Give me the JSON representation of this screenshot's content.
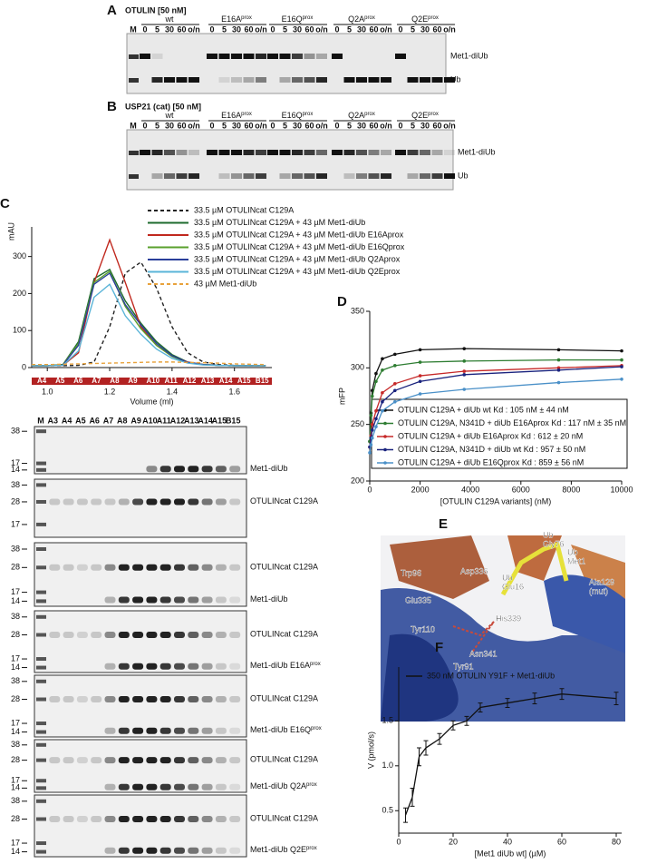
{
  "chart_data": [
    {
      "type": "line",
      "label": "C",
      "xlabel": "Volume (ml)",
      "ylabel": "mAU",
      "x": [
        0.95,
        1.0,
        1.05,
        1.1,
        1.15,
        1.2,
        1.25,
        1.3,
        1.35,
        1.4,
        1.45,
        1.5,
        1.55,
        1.6,
        1.65,
        1.7
      ],
      "xlim": [
        0.95,
        1.72
      ],
      "xticks": [
        {
          "value": 1,
          "label": "1.0"
        },
        1.2,
        1.4,
        1.6
      ],
      "ylim": [
        0,
        380
      ],
      "yticks": [
        0,
        100,
        200,
        300
      ],
      "fractions": [
        "A4",
        "A5",
        "A6",
        "A7",
        "A8",
        "A9",
        "A10",
        "A11",
        "A12",
        "A13",
        "A14",
        "A15",
        "B15"
      ],
      "series": [
        {
          "name": "33.5 µM OTULINcat C129A",
          "color": "#222222",
          "linestyle": "dashed",
          "values": [
            5,
            5,
            5,
            6,
            15,
            110,
            255,
            285,
            215,
            110,
            40,
            15,
            8,
            6,
            5,
            5
          ]
        },
        {
          "name": "33.5 µM OTULINcat C129A + 43 µM Met1-diUb",
          "color": "#1e6b2e",
          "linestyle": "solid",
          "values": [
            5,
            5,
            8,
            70,
            240,
            265,
            180,
            120,
            70,
            35,
            15,
            8,
            6,
            5,
            5,
            5
          ]
        },
        {
          "name": "33.5 µM OTULINcat C129A + 43 µM Met1-diUb E16Aprox",
          "color": "#c0281e",
          "linestyle": "solid",
          "values": [
            5,
            5,
            6,
            40,
            230,
            345,
            230,
            110,
            60,
            30,
            15,
            8,
            6,
            5,
            5,
            5
          ]
        },
        {
          "name": "33.5 µM OTULINcat C129A + 43 µM Met1-diUb E16Qprox",
          "color": "#5aa02c",
          "linestyle": "solid",
          "values": [
            5,
            5,
            8,
            65,
            230,
            260,
            165,
            105,
            60,
            30,
            13,
            8,
            6,
            5,
            5,
            5
          ]
        },
        {
          "name": "33.5 µM OTULINcat C129A + 43 µM Met1-diUb Q2Aprox",
          "color": "#2a3f9a",
          "linestyle": "solid",
          "values": [
            5,
            5,
            7,
            60,
            225,
            255,
            170,
            115,
            65,
            32,
            14,
            8,
            6,
            5,
            5,
            5
          ]
        },
        {
          "name": "33.5 µM OTULINcat C129A + 43 µM Met1-diUb Q2Eprox",
          "color": "#5ab4d8",
          "linestyle": "solid",
          "values": [
            5,
            5,
            6,
            45,
            190,
            225,
            140,
            90,
            50,
            25,
            12,
            7,
            6,
            5,
            5,
            5
          ]
        },
        {
          "name": "43 µM Met1-diUb",
          "color": "#e8a23c",
          "linestyle": "dashed",
          "values": [
            8,
            8,
            9,
            10,
            11,
            12,
            13,
            14,
            15,
            15,
            14,
            13,
            12,
            10,
            9,
            8
          ]
        }
      ]
    },
    {
      "type": "scatter",
      "label": "D",
      "xlabel": "[OTULIN C129A variants] (nM)",
      "ylabel": "mFP",
      "x": [
        0,
        50,
        100,
        250,
        500,
        1000,
        2000,
        3750,
        7500,
        10000
      ],
      "xlim": [
        0,
        10000
      ],
      "xticks": [
        0,
        2000,
        4000,
        6000,
        8000,
        10000
      ],
      "ylim": [
        200,
        350
      ],
      "yticks": [
        200,
        250,
        300,
        350
      ],
      "series": [
        {
          "name": "OTULIN C129A + diUb wt Kd : 105 nM ± 44 nM",
          "color": "#111111",
          "values": [
            235,
            260,
            280,
            295,
            308,
            312,
            316,
            317,
            316,
            315
          ]
        },
        {
          "name": "OTULIN C129A, N341D + diUb E16Aprox Kd : 117 nM ± 35 nM",
          "color": "#2e7d32",
          "values": [
            235,
            258,
            275,
            288,
            298,
            302,
            305,
            306,
            307,
            307
          ]
        },
        {
          "name": "OTULIN C129A + diUb E16Aprox Kd : 612 ± 20 nM",
          "color": "#c62828",
          "values": [
            230,
            240,
            250,
            262,
            278,
            286,
            293,
            297,
            300,
            302
          ]
        },
        {
          "name": "OTULIN C129A, N341D + diUb wt Kd : 957 ± 50 nM",
          "color": "#1a237e",
          "values": [
            230,
            238,
            245,
            255,
            270,
            280,
            288,
            294,
            298,
            301
          ]
        },
        {
          "name": "OTULIN C129A + diUb E16Qprox Kd : 859 ± 56 nM",
          "color": "#4a90c8",
          "values": [
            225,
            232,
            238,
            248,
            262,
            270,
            277,
            281,
            287,
            290
          ]
        }
      ]
    },
    {
      "type": "scatter",
      "label": "F",
      "xlabel": "[Met1 diUb wt] (µM)",
      "ylabel": "V (pmol/s)",
      "x": [
        2.5,
        5,
        7.5,
        10,
        15,
        20,
        25,
        30,
        40,
        50,
        60,
        80
      ],
      "xlim": [
        0,
        82
      ],
      "xticks": [
        0,
        20,
        40,
        60,
        80
      ],
      "ylim": [
        0.25,
        2.1
      ],
      "yticks": [
        0.5,
        {
          "value": 1,
          "label": "1.0"
        },
        1.5
      ],
      "series": [
        {
          "name": "350 nM OTULIN Y91F + Met1-diUb",
          "color": "#111111",
          "values": [
            0.45,
            0.65,
            1.1,
            1.2,
            1.3,
            1.45,
            1.5,
            1.65,
            1.7,
            1.75,
            1.8,
            1.75
          ],
          "errors": [
            0.08,
            0.1,
            0.1,
            0.08,
            0.06,
            0.05,
            0.05,
            0.05,
            0.05,
            0.06,
            0.06,
            0.07
          ]
        }
      ]
    }
  ],
  "gel_A": {
    "label": "A",
    "title": "OTULIN [50 nM]",
    "marker": "M",
    "groups": [
      {
        "text": "wt"
      },
      {
        "text": "E16A",
        "sup": "prox"
      },
      {
        "text": "E16Q",
        "sup": "prox"
      },
      {
        "text": "Q2A",
        "sup": "prox"
      },
      {
        "text": "Q2E",
        "sup": "prox"
      }
    ],
    "lanes": [
      "0",
      "5",
      "30",
      "60",
      "o/n"
    ],
    "bands": [
      "Met1-diUb",
      "Ub"
    ]
  },
  "gel_B": {
    "label": "B",
    "title": "USP21 (cat) [50 nM]",
    "marker": "M",
    "groups": [
      {
        "text": "wt"
      },
      {
        "text": "E16A",
        "sup": "prox"
      },
      {
        "text": "E16Q",
        "sup": "prox"
      },
      {
        "text": "Q2A",
        "sup": "prox"
      },
      {
        "text": "Q2E",
        "sup": "prox"
      }
    ],
    "lanes": [
      "0",
      "5",
      "30",
      "60",
      "o/n"
    ],
    "bands": [
      "Met1-diUb",
      "Ub"
    ]
  },
  "gel_C": {
    "lanes": [
      "M",
      "A3",
      "A4",
      "A5",
      "A6",
      "A7",
      "A8",
      "A9",
      "A10",
      "A11",
      "A12",
      "A13",
      "A14",
      "A15",
      "B15"
    ],
    "gels": [
      {
        "mw": [
          38,
          17,
          14
        ],
        "labels": [
          {
            "text": "Met1-diUb"
          }
        ]
      },
      {
        "mw": [
          38,
          28,
          17
        ],
        "labels": [
          {
            "text": "OTULINcat C129A"
          }
        ]
      },
      {
        "mw": [
          38,
          28,
          17,
          14
        ],
        "labels": [
          {
            "text": "OTULINcat C129A"
          },
          {
            "text": "Met1-diUb"
          }
        ]
      },
      {
        "mw": [
          38,
          28,
          17,
          14
        ],
        "labels": [
          {
            "text": "OTULINcat C129A"
          },
          {
            "text": "Met1-diUb E16A",
            "sup": "prox"
          }
        ]
      },
      {
        "mw": [
          38,
          28,
          17,
          14
        ],
        "labels": [
          {
            "text": "OTULINcat C129A"
          },
          {
            "text": "Met1-diUb E16Q",
            "sup": "prox"
          }
        ]
      },
      {
        "mw": [
          38,
          28,
          17,
          14
        ],
        "labels": [
          {
            "text": "OTULINcat C129A"
          },
          {
            "text": "Met1-diUb Q2A",
            "sup": "prox"
          }
        ]
      },
      {
        "mw": [
          38,
          28,
          17,
          14
        ],
        "labels": [
          {
            "text": "OTULINcat C129A"
          },
          {
            "text": "Met1-diUb Q2E",
            "sup": "prox"
          }
        ]
      }
    ]
  },
  "structure": {
    "label": "E",
    "residues": [
      [
        "Trp96"
      ],
      [
        "Asp336"
      ],
      [
        "Ub",
        "Glu16"
      ],
      [
        "Ub",
        "Gly76"
      ],
      [
        "Ub",
        "Met1"
      ],
      [
        "Ala129",
        "(mut)"
      ],
      [
        "Glu335"
      ],
      [
        "His339"
      ],
      [
        "Tyr110"
      ],
      [
        "Asn341"
      ],
      [
        "Tyr91"
      ]
    ]
  }
}
